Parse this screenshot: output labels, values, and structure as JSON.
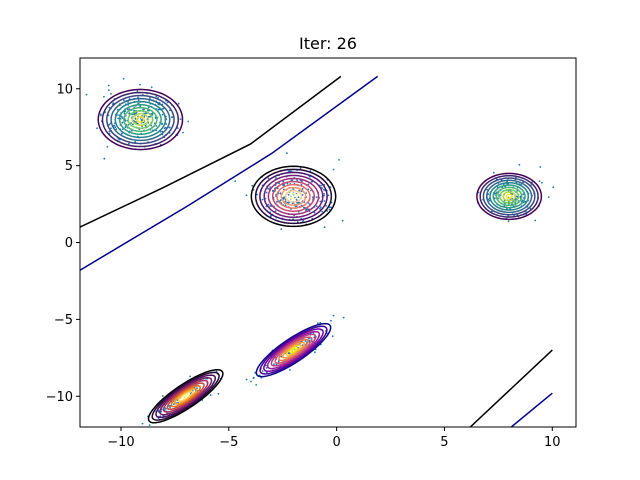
{
  "chart_data": {
    "type": "scatter",
    "title": "Iter: 26",
    "xlabel": "",
    "ylabel": "",
    "xlim": [
      -11.9,
      11.1
    ],
    "ylim": [
      -12.0,
      12.0
    ],
    "xticks": [
      -10,
      -5,
      0,
      5,
      10
    ],
    "xtick_labels": [
      "−10",
      "−5",
      "0",
      "5",
      "10"
    ],
    "yticks": [
      -10,
      -5,
      0,
      5,
      10
    ],
    "ytick_labels": [
      "−10",
      "−5",
      "0",
      "5",
      "10"
    ],
    "grid": false,
    "point_color": "#1f77b4",
    "clusters": [
      {
        "id": "c1",
        "center": [
          -9.1,
          8.0
        ],
        "sd": [
          0.85,
          0.85
        ],
        "corr": 0.0,
        "n": 260,
        "levels": 10,
        "colormap": "viridis"
      },
      {
        "id": "c2",
        "center": [
          -2.0,
          3.0
        ],
        "sd": [
          0.85,
          0.85
        ],
        "corr": 0.0,
        "n": 260,
        "levels": 10,
        "colormap": "magma"
      },
      {
        "id": "c3",
        "center": [
          8.0,
          3.0
        ],
        "sd": [
          0.65,
          0.65
        ],
        "corr": 0.0,
        "n": 160,
        "levels": 10,
        "colormap": "viridis"
      },
      {
        "id": "c4",
        "center": [
          -2.0,
          -7.0
        ],
        "sd": [
          0.75,
          0.75
        ],
        "corr": 0.85,
        "n": 160,
        "levels": 10,
        "colormap": "plasma"
      },
      {
        "id": "c5",
        "center": [
          -7.0,
          -10.0
        ],
        "sd": [
          0.75,
          0.75
        ],
        "corr": 0.85,
        "n": 160,
        "levels": 10,
        "colormap": "inferno"
      }
    ],
    "boundaries": [
      {
        "id": "boundary-upper-black",
        "color": "#000000",
        "points": [
          [
            -11.9,
            1.0
          ],
          [
            -8.0,
            3.6
          ],
          [
            -4.0,
            6.4
          ],
          [
            0.2,
            10.8
          ]
        ]
      },
      {
        "id": "boundary-upper-navy",
        "color": "#00008b",
        "points": [
          [
            -11.9,
            -1.8
          ],
          [
            -7.0,
            2.3
          ],
          [
            -3.0,
            5.8
          ],
          [
            1.9,
            10.8
          ]
        ]
      },
      {
        "id": "boundary-lower-black",
        "color": "#000000",
        "points": [
          [
            6.2,
            -12.0
          ],
          [
            10.0,
            -7.0
          ]
        ]
      },
      {
        "id": "boundary-lower-navy",
        "color": "#00008b",
        "points": [
          [
            8.1,
            -12.0
          ],
          [
            10.0,
            -9.8
          ]
        ]
      }
    ]
  }
}
